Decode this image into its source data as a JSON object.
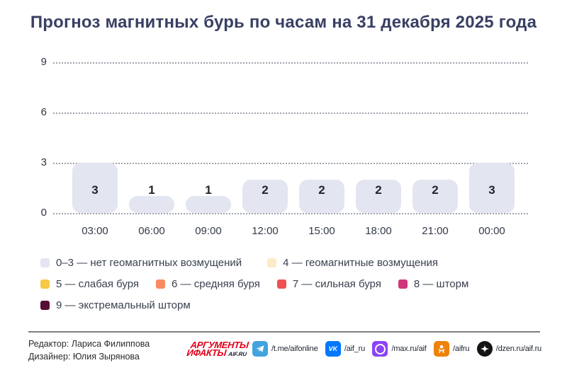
{
  "page": {
    "title": "Прогноз магнитных бурь по часам на 31 декабря 2025 года"
  },
  "chart_data": {
    "type": "bar",
    "title": "Прогноз магнитных бурь по часам на 31 декабря 2025 года",
    "categories": [
      "03:00",
      "06:00",
      "09:00",
      "12:00",
      "15:00",
      "18:00",
      "21:00",
      "00:00"
    ],
    "values": [
      3,
      1,
      1,
      2,
      2,
      2,
      2,
      3
    ],
    "xlabel": "",
    "ylabel": "",
    "ylim": [
      0,
      9
    ],
    "yticks": [
      9,
      6,
      3,
      0
    ],
    "grid": "horizontal-dotted",
    "bar_color": "#e3e5f1",
    "legend_position": "bottom"
  },
  "legend": {
    "rows": [
      [
        {
          "label": "0–3 — нет геомагнитных возмущений",
          "color": "#e3e5f1"
        },
        {
          "label": "4 — геомагнитные возмущения",
          "color": "#fbecc7"
        }
      ],
      [
        {
          "label": "5 — слабая буря",
          "color": "#f8c947"
        },
        {
          "label": "6 — средняя буря",
          "color": "#f98b5f"
        },
        {
          "label": "7 — сильная буря",
          "color": "#ef5050"
        },
        {
          "label": "8 — шторм",
          "color": "#ce3679"
        }
      ],
      [
        {
          "label": "9 — экстремальный шторм",
          "color": "#570d32"
        }
      ]
    ]
  },
  "footer": {
    "editor": "Редактор: Лариса Филиппова",
    "designer": "Дизайнер: Юлия Зырянова",
    "logo": {
      "line1": "АРГУМЕНТЫ",
      "line2": "ИФАКТЫ",
      "suffix": "AIF.RU"
    },
    "socials": [
      {
        "icon": "telegram-icon",
        "label": "/t.me/aifonline",
        "color": "#42a3df"
      },
      {
        "icon": "vk-icon",
        "label": "/aif_ru",
        "color": "#0077ff"
      },
      {
        "icon": "max-icon",
        "label": "/max.ru/aif",
        "color": "#8b44f7"
      },
      {
        "icon": "ok-icon",
        "label": "/aifru",
        "color": "#ee8208"
      },
      {
        "icon": "dzen-icon",
        "label": "/dzen.ru/aif.ru",
        "color": "#141414"
      }
    ]
  }
}
